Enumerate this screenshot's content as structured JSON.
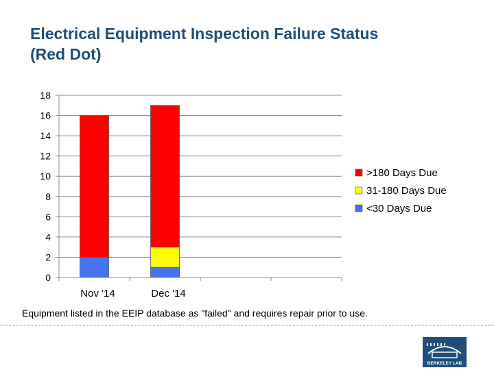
{
  "page": {
    "title_line1": "Electrical Equipment Inspection Failure Status",
    "title_line2": "(Red Dot)",
    "caption": "Equipment listed in the EEIP database as \"failed\" and requires repair prior to use.",
    "logo_text": "BERKELEY LAB"
  },
  "chart_data": {
    "type": "bar",
    "stacked": true,
    "categories": [
      "Nov '14",
      "Dec '14",
      "",
      ""
    ],
    "series": [
      {
        "name": "<30 Days Due",
        "values": [
          2,
          1,
          0,
          0
        ],
        "color": "#4472f0"
      },
      {
        "name": "31-180 Days Due",
        "values": [
          0,
          2,
          0,
          0
        ],
        "color": "#ffff00"
      },
      {
        "name": ">180 Days Due",
        "values": [
          14,
          14,
          0,
          0
        ],
        "color": "#ff0000"
      }
    ],
    "legend_order": [
      ">180 Days Due",
      "31-180 Days Due",
      "<30 Days Due"
    ],
    "y_ticks": [
      0,
      2,
      4,
      6,
      8,
      10,
      12,
      14,
      16,
      18
    ],
    "ylim": [
      0,
      18
    ],
    "grid": true,
    "legend_position": "right"
  }
}
